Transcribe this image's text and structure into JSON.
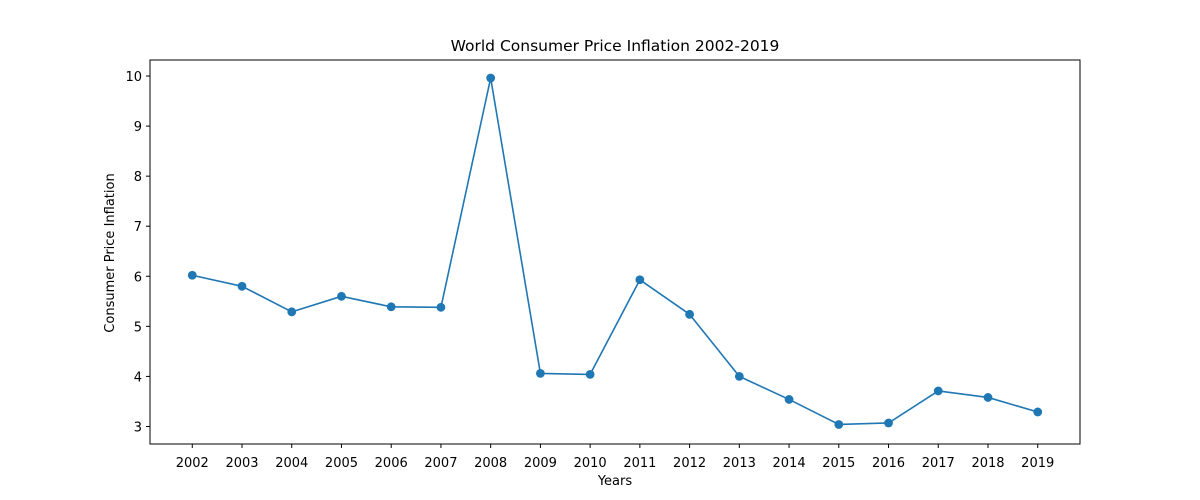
{
  "chart_data": {
    "type": "line",
    "title": "World Consumer Price Inflation 2002-2019",
    "xlabel": "Years",
    "ylabel": "Consumer Price Inflation",
    "categories": [
      "2002",
      "2003",
      "2004",
      "2005",
      "2006",
      "2007",
      "2008",
      "2009",
      "2010",
      "2011",
      "2012",
      "2013",
      "2014",
      "2015",
      "2016",
      "2017",
      "2018",
      "2019"
    ],
    "series": [
      {
        "values": [
          6.02,
          5.8,
          5.29,
          5.6,
          5.39,
          5.38,
          9.96,
          4.06,
          4.04,
          5.93,
          5.24,
          4.0,
          3.54,
          3.04,
          3.07,
          3.71,
          3.58,
          3.29
        ]
      }
    ],
    "yticks": [
      3,
      4,
      5,
      6,
      7,
      8,
      9,
      10
    ],
    "ylim": [
      2.65,
      10.32
    ],
    "grid": false,
    "markers": true,
    "colors": {
      "series": "#1f77b4",
      "axes": "#000000",
      "background": "#ffffff"
    }
  }
}
